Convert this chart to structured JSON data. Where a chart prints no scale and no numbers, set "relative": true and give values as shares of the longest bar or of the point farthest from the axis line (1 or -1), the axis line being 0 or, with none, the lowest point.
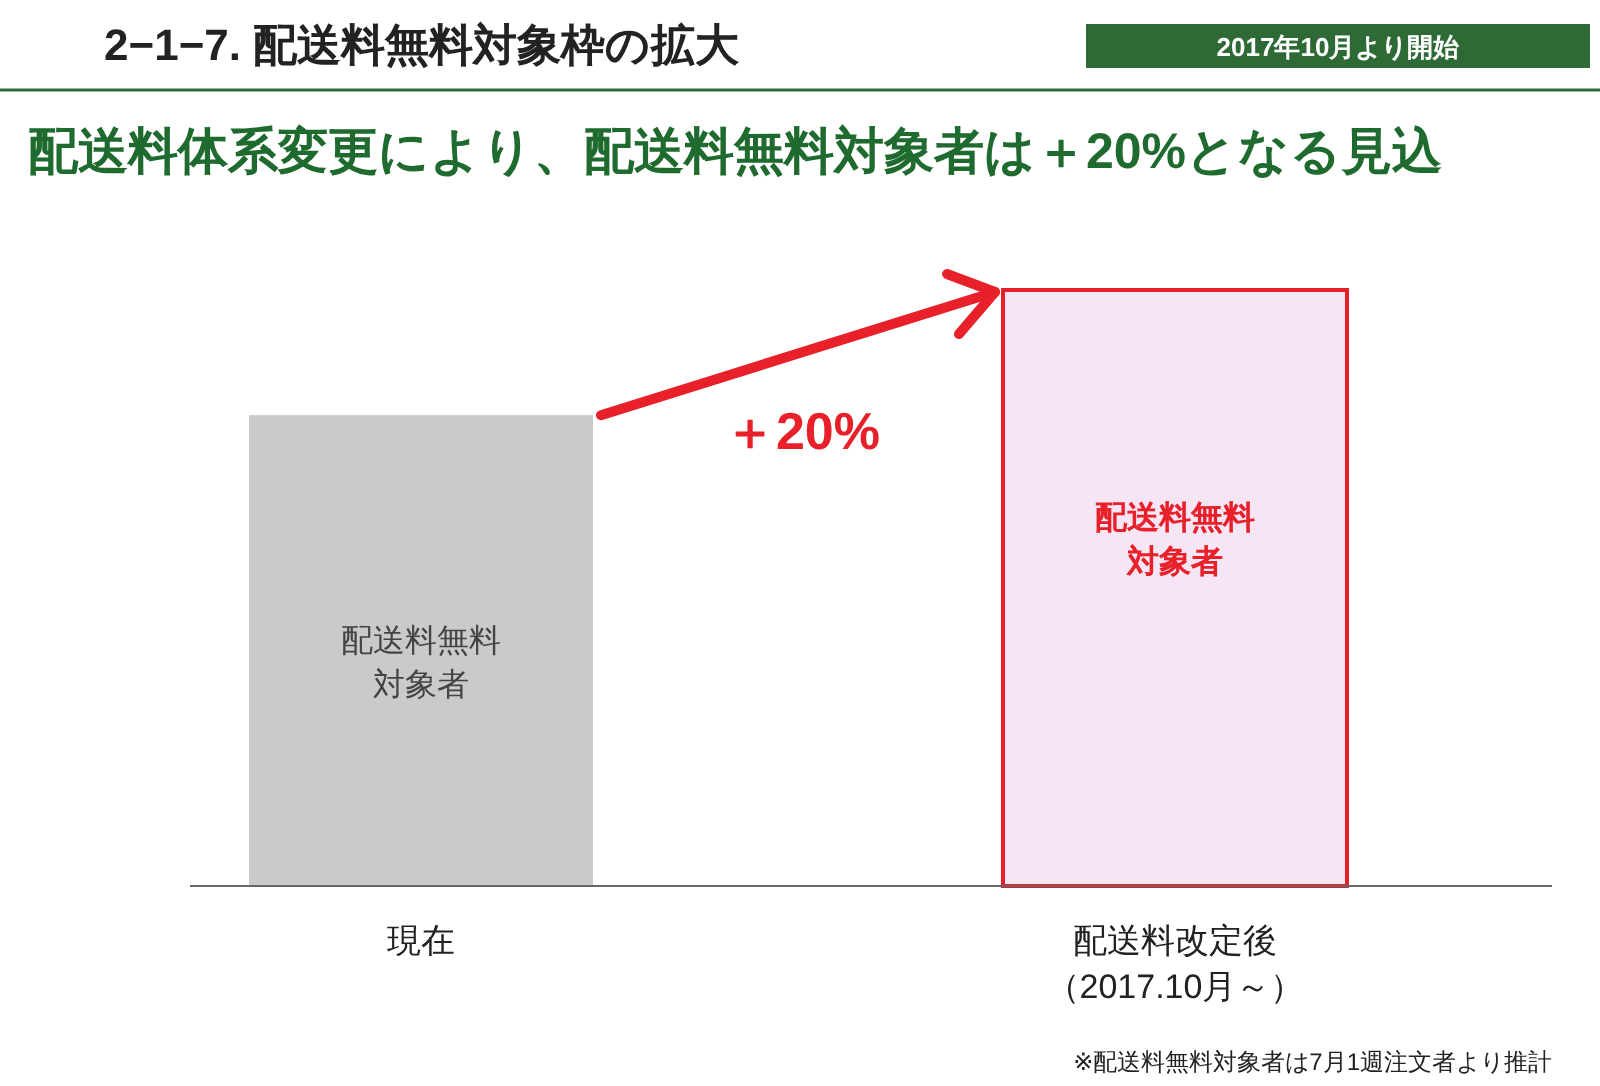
{
  "chart_data": {
    "type": "bar",
    "relative": true,
    "title": "2−1−7. 配送料無料対象枠の拡大",
    "subtitle": "配送料体系変更により、配送料無料対象者は＋20%となる見込",
    "categories": [
      "現在",
      "配送料改定後（2017.10月～）"
    ],
    "values": [
      0.79,
      1
    ],
    "colors": [
      "#c9cacc",
      "#f6e6f5"
    ],
    "annotations": [
      {
        "text": "2017年10月より開始"
      },
      {
        "text": "＋20%"
      },
      "配送料無料対象者",
      "配送料無料対象者",
      {
        "text": "※配送料無料対象者は7月1週注文者より推計"
      }
    ]
  }
}
